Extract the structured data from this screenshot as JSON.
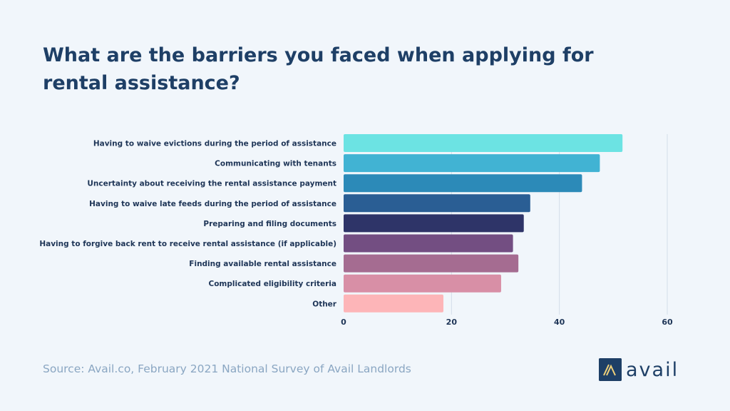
{
  "chart_data": {
    "type": "bar",
    "orientation": "horizontal",
    "title": "What are the barriers you faced when applying for rental assistance?",
    "categories": [
      "Having to waive evictions during the period of assistance",
      "Communicating with tenants",
      "Uncertainty about receiving the rental assistance payment",
      "Having to waive late feeds during the period of assistance",
      "Preparing and filing documents",
      "Having to forgive back rent to receive rental assistance (if applicable)",
      "Finding available rental assistance",
      "Complicated eligibility criteria",
      "Other"
    ],
    "values": [
      51.7,
      47.5,
      44.2,
      34.6,
      33.4,
      31.4,
      32.4,
      29.2,
      18.5
    ],
    "colors": [
      "#6ce3e3",
      "#41b3d3",
      "#2c8ab8",
      "#2a5e94",
      "#2e3468",
      "#734e82",
      "#a56c91",
      "#d88fa6",
      "#fdb5b8"
    ],
    "xlim": [
      0,
      60
    ],
    "xticks": [
      0,
      20,
      40,
      60
    ],
    "grid": true,
    "xlabel": "",
    "ylabel": ""
  },
  "footer": {
    "source": "Source: Avail.co, February 2021 National Survey of Avail Landlords",
    "logo_text": "avail"
  }
}
